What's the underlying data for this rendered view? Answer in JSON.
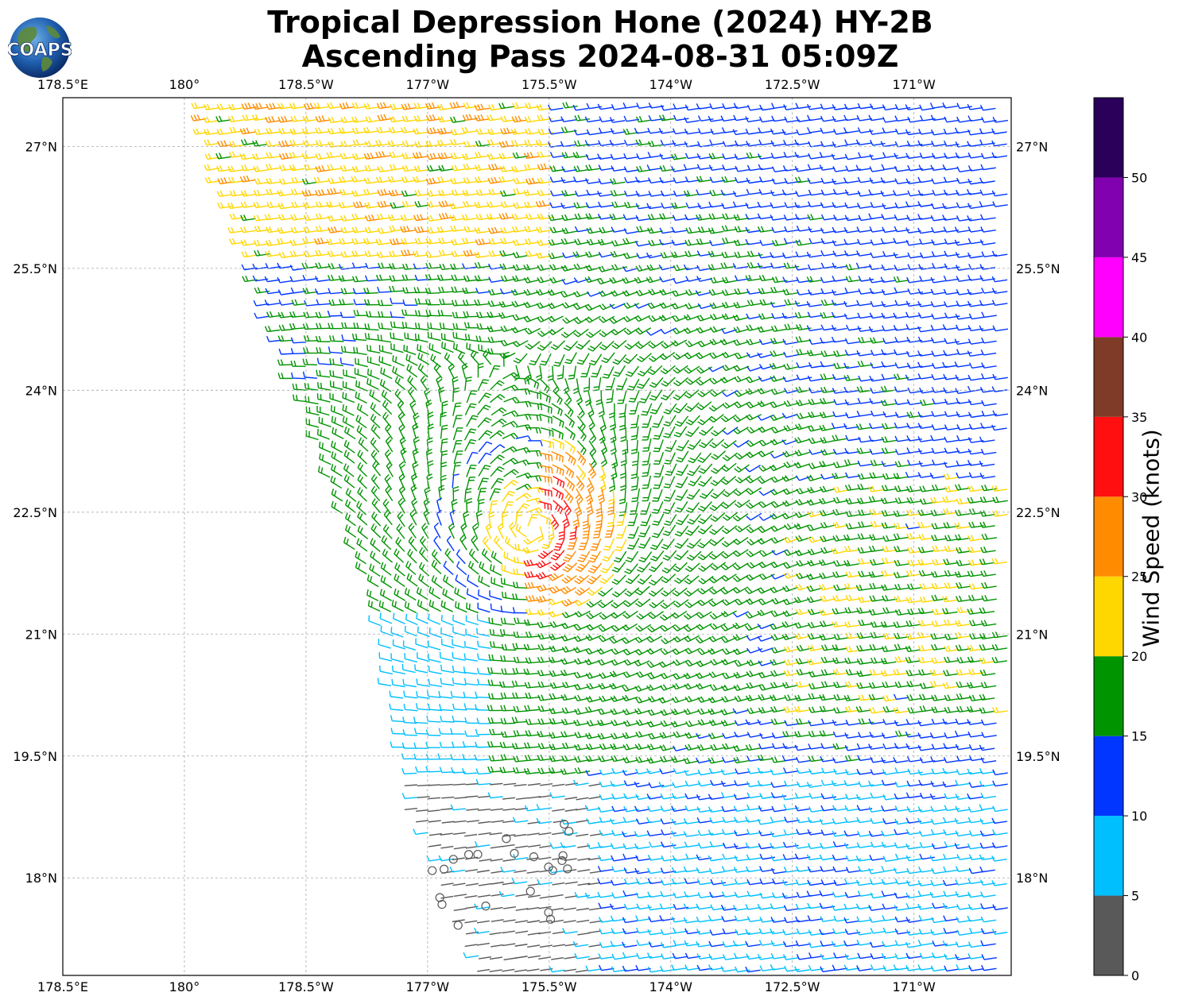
{
  "title": {
    "line1": "Tropical Depression Hone (2024) HY-2B",
    "line2": "Ascending Pass 2024-08-31 05:09Z"
  },
  "logo": {
    "text": "COAPS",
    "icon": "globe-logo"
  },
  "map": {
    "x_ticks": [
      "178.5°E",
      "180°",
      "178.5°W",
      "177°W",
      "175.5°W",
      "174°W",
      "172.5°W",
      "171°W"
    ],
    "y_ticks": [
      "27°N",
      "25.5°N",
      "24°N",
      "22.5°N",
      "21°N",
      "19.5°N",
      "18°N"
    ],
    "lon_range": [
      178.5,
      190.2
    ],
    "lat_range": [
      16.8,
      27.6
    ],
    "gridlines": true,
    "storm_center": {
      "lon": 184.3,
      "lat": 22.3
    },
    "swath_color_by_speed": true
  },
  "colorbar": {
    "title": "Wind Speed (knots)",
    "ticks": [
      "0",
      "5",
      "10",
      "15",
      "20",
      "25",
      "30",
      "35",
      "40",
      "45",
      "50"
    ],
    "bins": [
      {
        "min": 0,
        "max": 5,
        "color": "#595959"
      },
      {
        "min": 5,
        "max": 10,
        "color": "#00bfff"
      },
      {
        "min": 10,
        "max": 15,
        "color": "#0036ff"
      },
      {
        "min": 15,
        "max": 20,
        "color": "#009400"
      },
      {
        "min": 20,
        "max": 25,
        "color": "#ffd700"
      },
      {
        "min": 25,
        "max": 30,
        "color": "#ff8c00"
      },
      {
        "min": 30,
        "max": 35,
        "color": "#ff0f0f"
      },
      {
        "min": 35,
        "max": 40,
        "color": "#7f3a28"
      },
      {
        "min": 40,
        "max": 45,
        "color": "#ff00ff"
      },
      {
        "min": 45,
        "max": 50,
        "color": "#8100b0"
      },
      {
        "min": 50,
        "max": 55,
        "color": "#2a005a"
      }
    ]
  }
}
